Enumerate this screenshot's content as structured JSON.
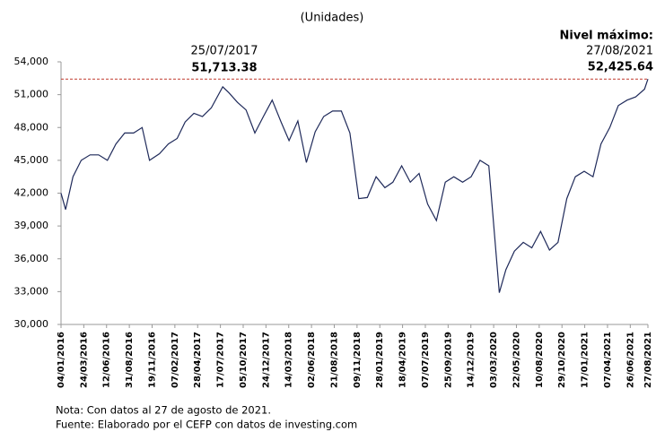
{
  "chart_data": {
    "type": "line",
    "subtitle": "(Unidades)",
    "series": [
      {
        "color": "#1f2a5a",
        "x": [
          "04/01/2016",
          "20/01/2016",
          "15/02/2016",
          "15/03/2016",
          "15/04/2016",
          "15/05/2016",
          "15/06/2016",
          "15/07/2016",
          "15/08/2016",
          "15/09/2016",
          "15/10/2016",
          "10/11/2016",
          "15/12/2016",
          "15/01/2017",
          "15/02/2017",
          "15/03/2017",
          "15/04/2017",
          "15/05/2017",
          "15/06/2017",
          "25/07/2017",
          "15/08/2017",
          "15/09/2017",
          "15/10/2017",
          "15/11/2017",
          "15/12/2017",
          "15/01/2018",
          "15/02/2018",
          "15/03/2018",
          "15/04/2018",
          "15/05/2018",
          "15/06/2018",
          "15/07/2018",
          "15/08/2018",
          "15/09/2018",
          "15/10/2018",
          "15/11/2018",
          "15/12/2018",
          "15/01/2019",
          "15/02/2019",
          "15/03/2019",
          "15/04/2019",
          "15/05/2019",
          "15/06/2019",
          "15/07/2019",
          "15/08/2019",
          "15/09/2019",
          "15/10/2019",
          "15/11/2019",
          "15/12/2019",
          "15/01/2020",
          "15/02/2020",
          "23/03/2020",
          "15/04/2020",
          "15/05/2020",
          "15/06/2020",
          "15/07/2020",
          "15/08/2020",
          "15/09/2020",
          "15/10/2020",
          "15/11/2020",
          "15/12/2020",
          "15/01/2021",
          "15/02/2021",
          "15/03/2021",
          "15/04/2021",
          "15/05/2021",
          "15/06/2021",
          "15/07/2021",
          "15/08/2021",
          "27/08/2021"
        ],
        "values": [
          42000,
          40500,
          43500,
          45000,
          45500,
          45500,
          45000,
          46500,
          47500,
          47500,
          48000,
          45000,
          45600,
          46500,
          47000,
          48500,
          49300,
          49000,
          49800,
          51713.38,
          51200,
          50300,
          49600,
          47500,
          49000,
          50500,
          48500,
          46800,
          48600,
          44800,
          47600,
          49000,
          49500,
          49500,
          47500,
          41500,
          41600,
          43500,
          42500,
          43000,
          44500,
          43000,
          43800,
          41000,
          39500,
          43000,
          43500,
          43000,
          43500,
          45000,
          44500,
          32900,
          35000,
          36700,
          37500,
          37000,
          38500,
          36800,
          37500,
          41500,
          43500,
          44000,
          43500,
          46500,
          48000,
          50000,
          50500,
          50800,
          51500,
          52425.64
        ]
      }
    ],
    "xlim": [
      "04/01/2016",
      "27/08/2021"
    ],
    "xticks": [
      "04/01/2016",
      "24/03/2016",
      "12/06/2016",
      "31/08/2016",
      "19/11/2016",
      "07/02/2017",
      "28/04/2017",
      "17/07/2017",
      "05/10/2017",
      "24/12/2017",
      "14/03/2018",
      "02/06/2018",
      "21/08/2018",
      "09/11/2018",
      "28/01/2019",
      "18/04/2019",
      "07/07/2019",
      "25/09/2019",
      "14/12/2019",
      "03/03/2020",
      "22/05/2020",
      "10/08/2020",
      "29/10/2020",
      "17/01/2021",
      "07/04/2021",
      "26/06/2021",
      "27/08/2021"
    ],
    "ylim": [
      30000,
      54000
    ],
    "yticks": [
      {
        "value": 30000,
        "label": "30,000"
      },
      {
        "value": 33000,
        "label": "33,000"
      },
      {
        "value": 36000,
        "label": "36,000"
      },
      {
        "value": 39000,
        "label": "39,000"
      },
      {
        "value": 42000,
        "label": "42,000"
      },
      {
        "value": 45000,
        "label": "45,000"
      },
      {
        "value": 48000,
        "label": "48,000"
      },
      {
        "value": 51000,
        "label": "51,000"
      },
      {
        "value": 54000,
        "label": "54,000"
      }
    ],
    "annotations": [
      {
        "date": "25/07/2017",
        "value": 51713.38,
        "label": "51,713.38"
      },
      {
        "title": "Nivel máximo:",
        "date": "27/08/2021",
        "value": 52425.64,
        "label": "52,425.64"
      }
    ],
    "reference_line_color": "#c0392b",
    "notes": [
      "Nota: Con datos al 27 de agosto de 2021.",
      "Fuente: Elaborado por el CEFP con datos de investing.com"
    ]
  }
}
